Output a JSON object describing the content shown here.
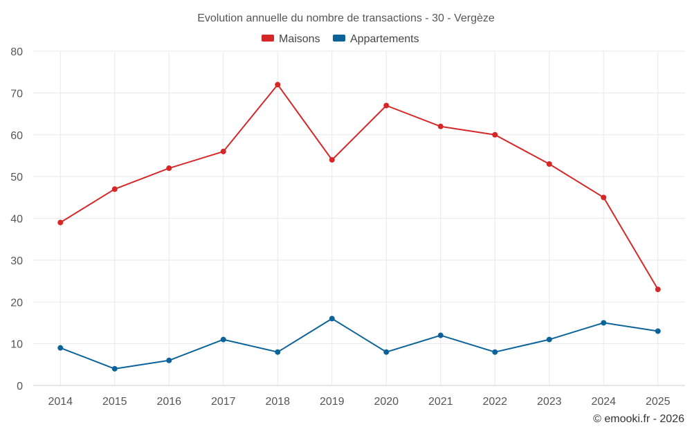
{
  "chart_data": {
    "type": "line",
    "title": "Evolution annuelle du nombre de transactions - 30 - Vergèze",
    "xlabel": "",
    "ylabel": "",
    "categories": [
      "2014",
      "2015",
      "2016",
      "2017",
      "2018",
      "2019",
      "2020",
      "2021",
      "2022",
      "2023",
      "2024",
      "2025"
    ],
    "ylim": [
      0,
      80
    ],
    "yticks": [
      "0",
      "10",
      "20",
      "30",
      "40",
      "50",
      "60",
      "70",
      "80"
    ],
    "grid": true,
    "legend_position": "top-center",
    "series": [
      {
        "name": "Maisons",
        "color": "#d62728",
        "values": [
          39,
          47,
          52,
          56,
          72,
          54,
          67,
          62,
          60,
          53,
          45,
          23
        ]
      },
      {
        "name": "Appartements",
        "color": "#0b6399",
        "values": [
          9,
          4,
          6,
          11,
          8,
          16,
          8,
          12,
          8,
          11,
          15,
          13
        ]
      }
    ],
    "credit": "© emooki.fr - 2026"
  }
}
